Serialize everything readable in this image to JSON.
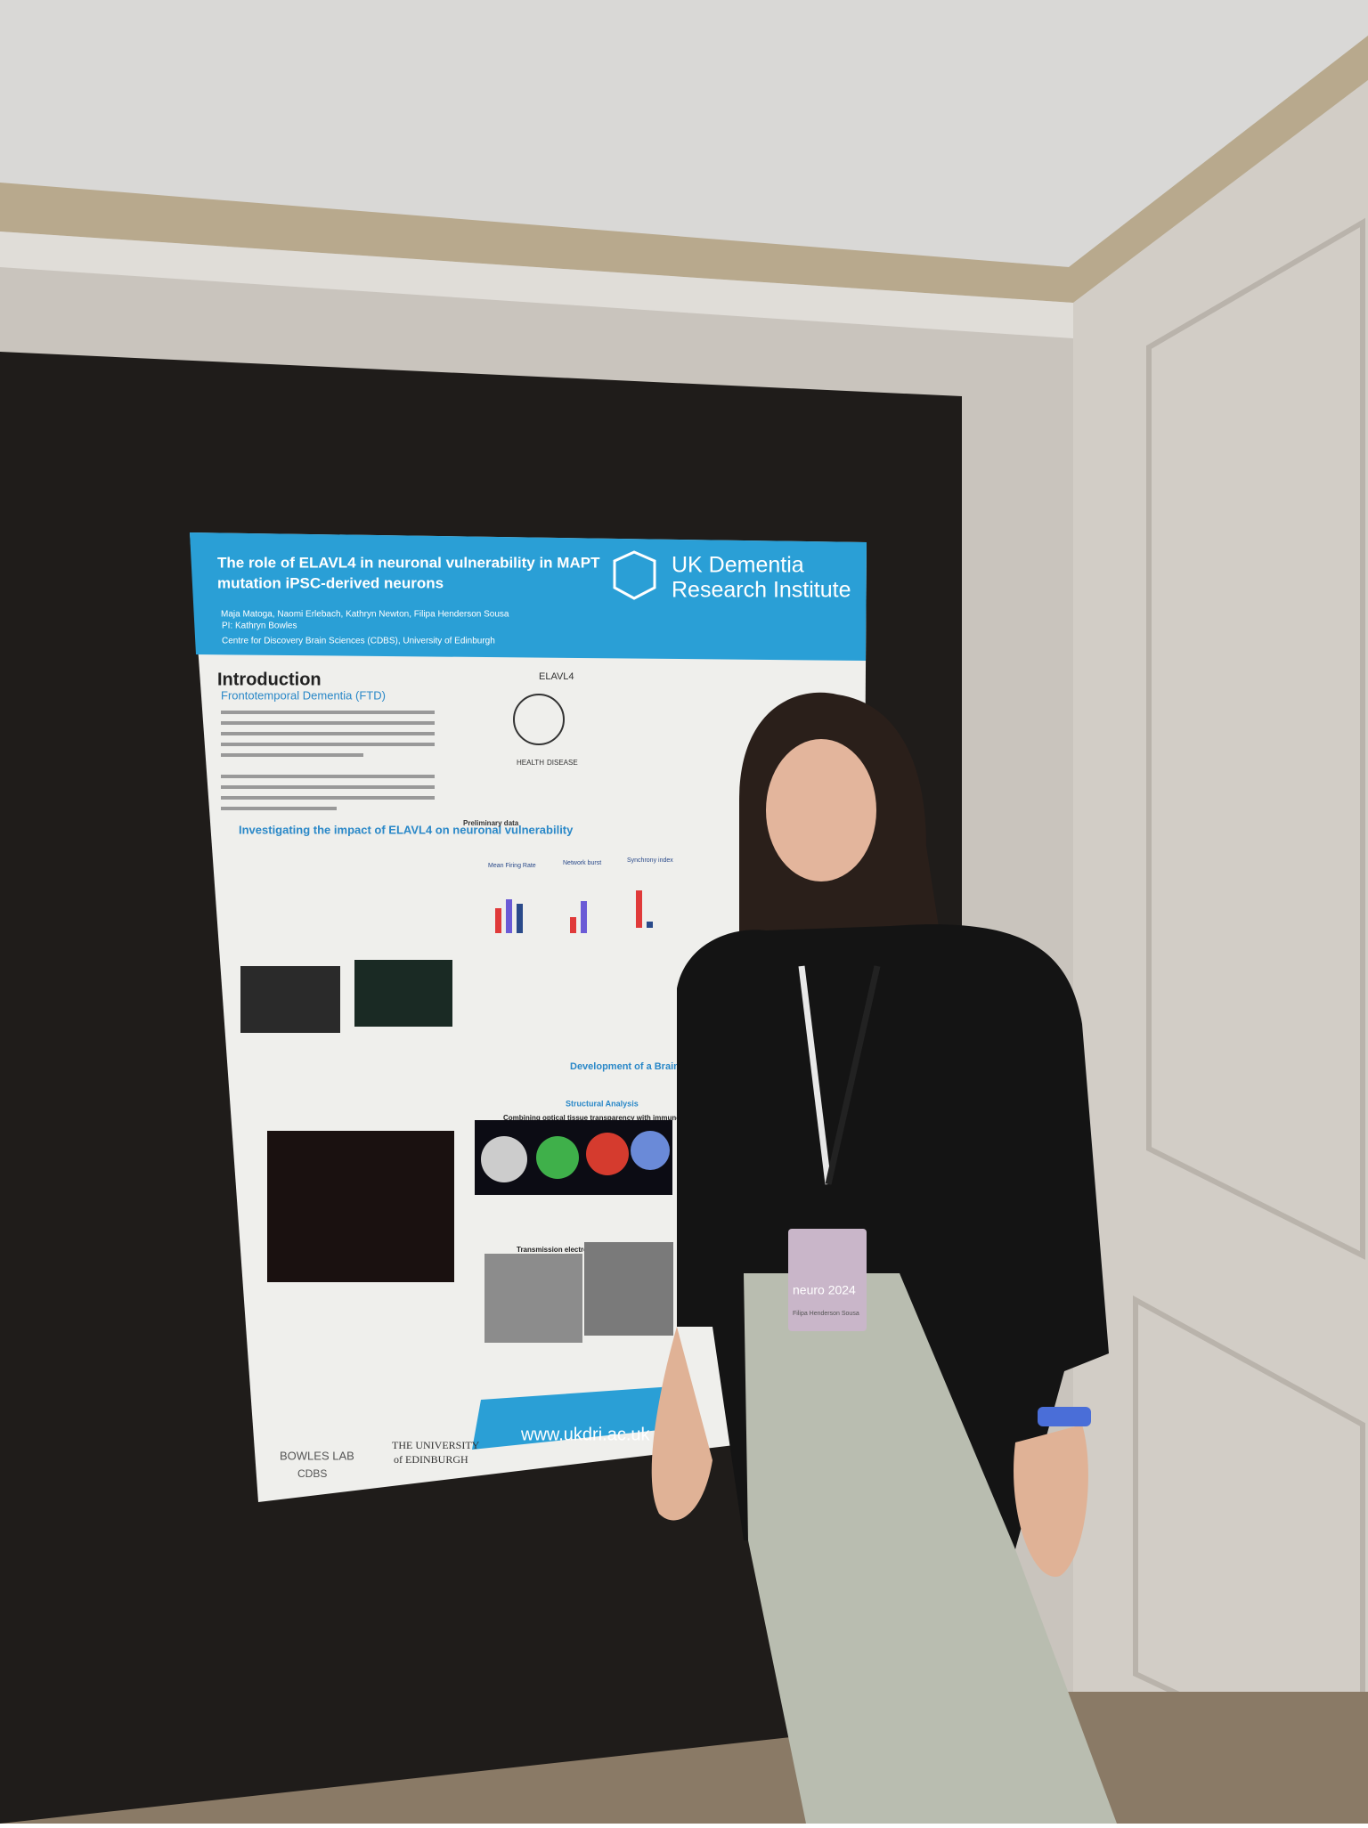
{
  "poster": {
    "title_lines": [
      "The role of ELAVL4 in neuronal vulnerability in MAPT",
      "mutation iPSC-derived neurons"
    ],
    "logo_lines": [
      "UK Dementia",
      "Research Institute"
    ],
    "authors": "Maja Matoga, Naomi Erlebach, Kathryn Newton, Filipa Henderson Sousa",
    "pi": "PI: Kathryn Bowles",
    "affiliation": "Centre for Discovery Brain Sciences (CDBS), University of Edinburgh",
    "intro_heading": "Introduction",
    "intro_subheading": "Frontotemporal Dementia (FTD)",
    "diagram_title": "ELAVL4",
    "diagram_labels": [
      "HEALTH",
      "DISEASE"
    ],
    "section_heading": "Investigating the impact of ELAVL4 on neuronal vulnerability",
    "preliminary": "Preliminary data",
    "plot_titles": [
      "Mean Firing Rate",
      "Network burst",
      "Synchrony index"
    ],
    "brain_heading": "Development of a Brain Or",
    "structural": "Structural Analysis",
    "clearing": "Combining optical tissue transparency with immunofluorescence",
    "tem": "Transmission electron microscopy (TEM)",
    "url": "www.ukdri.ac.uk",
    "footer_logos": [
      "BOWLES LAB",
      "CDBS",
      "THE UNIVERSITY",
      "of EDINBURGH"
    ]
  },
  "badge": {
    "event": "neuro 2024",
    "name": "Filipa Henderson Sousa"
  }
}
